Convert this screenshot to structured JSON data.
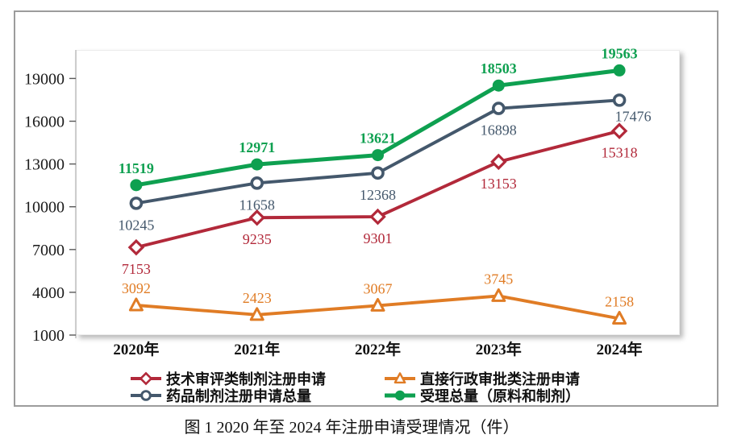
{
  "figure": {
    "caption": "图 1  2020 年至 2024 年注册申请受理情况（件）"
  },
  "chart_data": {
    "type": "line",
    "categories": [
      "2020年",
      "2021年",
      "2022年",
      "2023年",
      "2024年"
    ],
    "series": [
      {
        "name": "技术审评类制剂注册申请",
        "values": [
          7153,
          9235,
          9301,
          13153,
          15318
        ],
        "color": "#B2293A",
        "marker": "diamond",
        "label_position": "below",
        "label_bold": false
      },
      {
        "name": "直接行政审批类注册申请",
        "values": [
          3092,
          2423,
          3067,
          3745,
          2158
        ],
        "color": "#E07C25",
        "marker": "triangle",
        "label_position": "above",
        "label_bold": false
      },
      {
        "name": "药品制剂注册申请总量",
        "values": [
          10245,
          11658,
          12368,
          16898,
          17476
        ],
        "color": "#44586C",
        "marker": "circle-open",
        "label_position": "below",
        "label_bold": false
      },
      {
        "name": "受理总量（原料和制剂）",
        "values": [
          11519,
          12971,
          13621,
          18503,
          19563
        ],
        "color": "#0EA050",
        "marker": "circle-filled",
        "label_position": "above",
        "label_bold": true
      }
    ],
    "yticks": [
      1000,
      4000,
      7000,
      10000,
      13000,
      16000,
      19000
    ],
    "ylim": [
      1000,
      21000
    ],
    "xlabel": "",
    "ylabel": "",
    "grid": false,
    "legend_position": "bottom"
  }
}
